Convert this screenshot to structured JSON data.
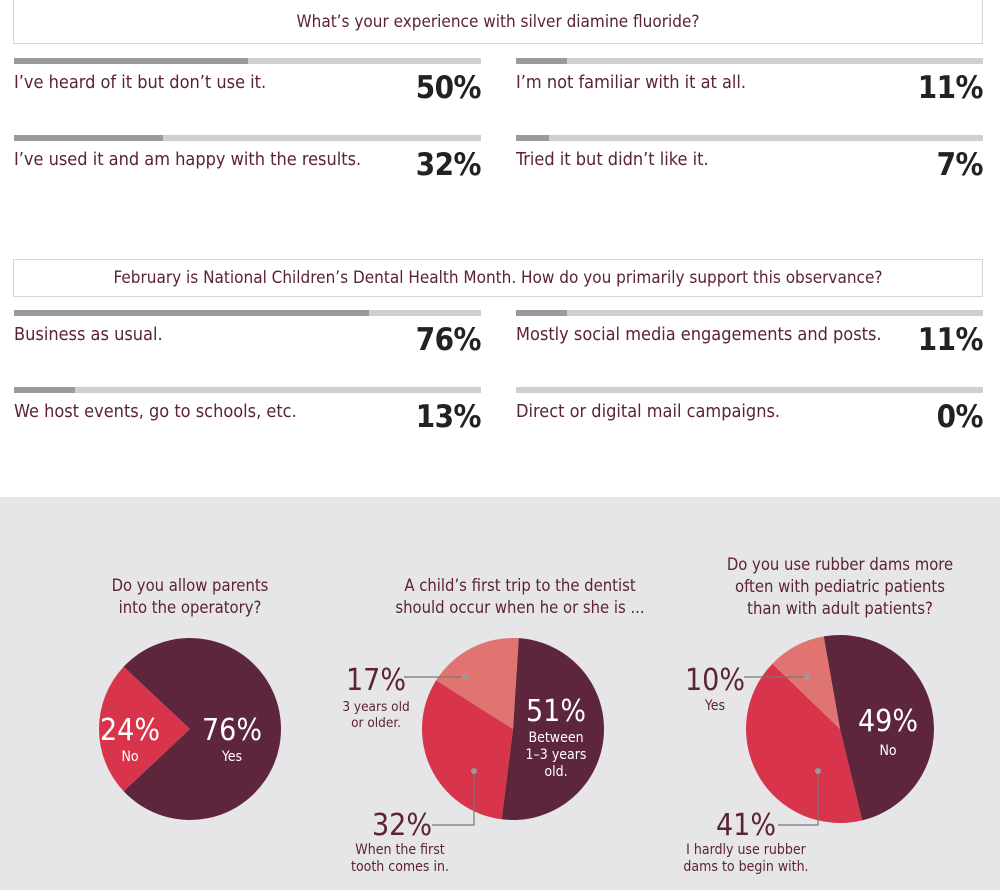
{
  "survey1": {
    "question": "What’s your experience with silver diamine fluoride?",
    "items": [
      {
        "label": "I’ve heard of it but don’t use it.",
        "pct": "50%",
        "value": 50
      },
      {
        "label": "I’m not familiar with it at all.",
        "pct": "11%",
        "value": 11
      },
      {
        "label": "I’ve used it and am happy with the results.",
        "pct": "32%",
        "value": 32
      },
      {
        "label": "Tried it but didn’t like it.",
        "pct": "7%",
        "value": 7
      }
    ]
  },
  "survey2": {
    "question": "February is National Children’s Dental Health Month. How do you primarily support this observance?",
    "items": [
      {
        "label": "Business as usual.",
        "pct": "76%",
        "value": 76
      },
      {
        "label": "Mostly social media engagements and posts.",
        "pct": "11%",
        "value": 11
      },
      {
        "label": "We host events, go to schools, etc.",
        "pct": "13%",
        "value": 13
      },
      {
        "label": "Direct or digital mail campaigns.",
        "pct": "0%",
        "value": 0
      }
    ]
  },
  "colors": {
    "dark": "#5e263d",
    "red": "#d8344b",
    "salmon": "#df7470",
    "bar": "#9a9a9a",
    "track": "#cfcfcf"
  },
  "chart_data": [
    {
      "type": "pie",
      "title": "Do you allow parents into the operatory?",
      "title_lines": [
        "Do you allow parents",
        "into the operatory?"
      ],
      "slices": [
        {
          "pct_label": "76%",
          "label": "Yes",
          "value": 76,
          "color": "#5e263d"
        },
        {
          "pct_label": "24%",
          "label": "No",
          "value": 24,
          "color": "#d8344b"
        }
      ]
    },
    {
      "type": "pie",
      "title": "A child’s first trip to the dentist should occur when he or she is ...",
      "title_lines": [
        "A child’s first trip to the dentist",
        "should occur when he or she is ..."
      ],
      "slices": [
        {
          "pct_label": "51%",
          "label": "Between 1–3 years old.",
          "label_lines": [
            "Between",
            "1–3 years",
            "old."
          ],
          "value": 51,
          "color": "#5e263d"
        },
        {
          "pct_label": "32%",
          "label": "When the first tooth comes in.",
          "label_lines": [
            "When the first",
            "tooth comes in."
          ],
          "value": 32,
          "color": "#d8344b"
        },
        {
          "pct_label": "17%",
          "label": "3 years old or older.",
          "label_lines": [
            "3 years old",
            "or older."
          ],
          "value": 17,
          "color": "#df7470"
        }
      ]
    },
    {
      "type": "pie",
      "title": "Do you use rubber dams more often with pediatric patients than with adult patients?",
      "title_lines": [
        "Do you use rubber dams more",
        "often with pediatric patients",
        "than with adult patients?"
      ],
      "slices": [
        {
          "pct_label": "49%",
          "label": "No",
          "label_lines": [
            "No"
          ],
          "value": 49,
          "color": "#5e263d"
        },
        {
          "pct_label": "41%",
          "label": "I hardly use rubber dams to begin with.",
          "label_lines": [
            "I hardly use rubber",
            "dams to begin with."
          ],
          "value": 41,
          "color": "#d8344b"
        },
        {
          "pct_label": "10%",
          "label": "Yes",
          "label_lines": [
            "Yes"
          ],
          "value": 10,
          "color": "#df7470"
        }
      ]
    }
  ]
}
